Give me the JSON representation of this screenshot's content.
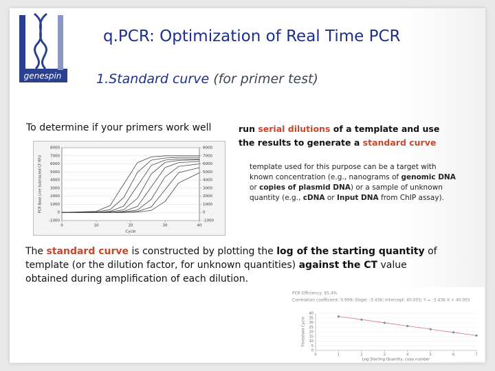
{
  "header": {
    "title": "q.PCR: Optimization of Real Time PCR",
    "subtitle": [
      {
        "text": "1.Standard curve",
        "style": "accent"
      },
      {
        "text": " (for primer test)",
        "style": "muted"
      }
    ],
    "logo_text": "genespin"
  },
  "body": {
    "lead": "To determine if your primers work well",
    "method": [
      [
        {
          "text": "run ",
          "style": "bold"
        },
        {
          "text": "serial dilutions",
          "style": "highlight"
        },
        {
          "text": " of a template and use",
          "style": "bold"
        }
      ],
      [
        {
          "text": "the results to generate a ",
          "style": "bold"
        },
        {
          "text": "standard curve",
          "style": "highlight"
        }
      ]
    ],
    "note": [
      [
        {
          "text": "template used for this purpose can be a target with",
          "style": "plain"
        }
      ],
      [
        {
          "text": "known concentration (e.g., nanograms of ",
          "style": "plain"
        },
        {
          "text": "genomic DNA",
          "style": "bold"
        }
      ],
      [
        {
          "text": "or ",
          "style": "plain"
        },
        {
          "text": "copies of plasmid DNA",
          "style": "bold"
        },
        {
          "text": ") or a sample of unknown",
          "style": "plain"
        }
      ],
      [
        {
          "text": "quantity (e.g., ",
          "style": "plain"
        },
        {
          "text": "cDNA",
          "style": "bold"
        },
        {
          "text": " or ",
          "style": "plain"
        },
        {
          "text": "Input DNA",
          "style": "bold"
        },
        {
          "text": " from ChIP assay).",
          "style": "plain"
        }
      ]
    ],
    "conclusion": [
      [
        {
          "text": "The ",
          "style": "plain"
        },
        {
          "text": "standard curve",
          "style": "highlight"
        },
        {
          "text": " is constructed by plotting the ",
          "style": "plain"
        },
        {
          "text": "log of the starting quantity",
          "style": "bold"
        },
        {
          "text": " of",
          "style": "plain"
        }
      ],
      [
        {
          "text": "template (or the dilution factor, for unknown quantities) ",
          "style": "plain"
        },
        {
          "text": "against the CT",
          "style": "bold"
        },
        {
          "text": " value",
          "style": "plain"
        }
      ],
      [
        {
          "text": "obtained during amplification of each dilution.",
          "style": "plain"
        }
      ]
    ]
  },
  "figures": {
    "amplification_plot": {
      "type": "line",
      "y_label": "PCR Base Line Subtracted CF RFU",
      "x_label": "Cycle",
      "x": [
        0,
        10,
        14,
        18,
        22,
        26,
        30,
        34,
        40
      ],
      "xlim": [
        0,
        40
      ],
      "xticks": [
        0,
        10,
        20,
        30,
        40
      ],
      "ylim": [
        -1000,
        8000
      ],
      "yticks": [
        -1000,
        0,
        1000,
        2000,
        3000,
        4000,
        5000,
        6000,
        7000,
        8000
      ],
      "y2lim": [
        -1000,
        8000
      ],
      "y2ticks": [
        -1000,
        0,
        1000,
        2000,
        3000,
        4000,
        5000,
        6000,
        7000,
        8000
      ],
      "color": "#444444",
      "series": [
        {
          "values": [
            0,
            140,
            840,
            3500,
            6160,
            6860,
            7000,
            7000,
            7000
          ]
        },
        {
          "values": [
            0,
            70,
            340,
            1840,
            4960,
            6460,
            6730,
            6800,
            6800
          ]
        },
        {
          "values": [
            0,
            0,
            130,
            790,
            3300,
            5810,
            6470,
            6600,
            6600
          ]
        },
        {
          "values": [
            0,
            0,
            70,
            330,
            1760,
            4750,
            6180,
            6440,
            6500
          ]
        },
        {
          "values": [
            0,
            0,
            0,
            130,
            760,
            3150,
            5540,
            6170,
            6300
          ]
        },
        {
          "values": [
            0,
            0,
            0,
            60,
            300,
            1620,
            4380,
            5700,
            6000
          ]
        },
        {
          "values": [
            0,
            0,
            0,
            0,
            110,
            670,
            2800,
            4930,
            5540
          ]
        },
        {
          "values": [
            0,
            0,
            0,
            0,
            50,
            250,
            1350,
            3650,
            4900
          ]
        }
      ]
    },
    "standard_curve": {
      "type": "scatter",
      "notes": [
        "PCR Efficiency: 95.4%",
        "Correlation coefficient: 0.999; Slope: -3.436; Intercept: 40.055; Y = -3.436 X + 40.055"
      ],
      "y_label": "Threshold Cycle",
      "x_label": "Log Starting Quantity, copy number",
      "x": [
        1,
        2,
        3,
        4,
        5,
        6,
        7
      ],
      "values": [
        36.62,
        33.18,
        29.75,
        26.31,
        22.88,
        19.44,
        16.0
      ],
      "xlim": [
        0,
        7
      ],
      "xticks": [
        0,
        1,
        2,
        3,
        4,
        5,
        6,
        7
      ],
      "ylim": [
        0,
        40
      ],
      "yticks": [
        0,
        5,
        10,
        15,
        20,
        25,
        30,
        35,
        40
      ],
      "point_color": "#7a8fa8",
      "line_color": "#d9708a",
      "grid": true
    }
  }
}
